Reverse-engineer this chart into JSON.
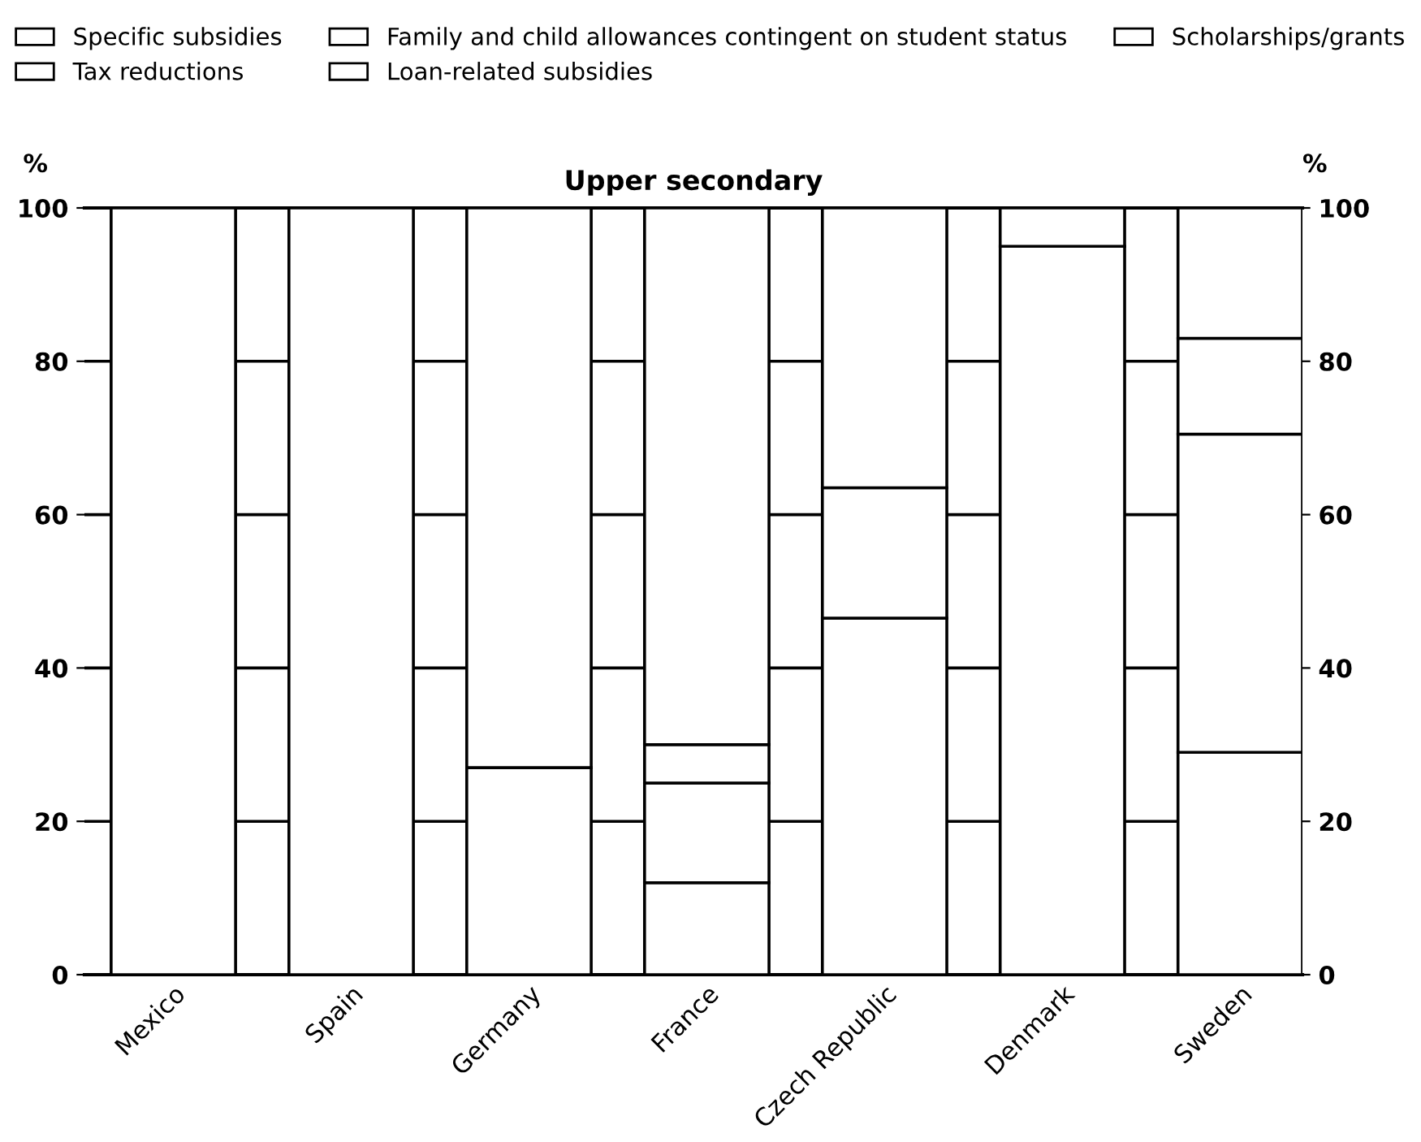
{
  "chart_data": {
    "type": "bar",
    "stacked": true,
    "title": "Upper secondary",
    "ylabel": "%",
    "y2label": "%",
    "categories": [
      "Mexico",
      "Spain",
      "Germany",
      "France",
      "Czech Republic",
      "Denmark",
      "Sweden"
    ],
    "series": [
      {
        "name": "Scholarships/grants",
        "color": "#ffffff",
        "values": [
          100,
          100,
          27,
          12,
          46.5,
          95,
          29
        ]
      },
      {
        "name": "Loan-related subsidies",
        "color": "#ffffff",
        "values": [
          null,
          null,
          null,
          13,
          null,
          null,
          41.5
        ]
      },
      {
        "name": "Family and child allowances contingent on student status",
        "color": "#ffffff",
        "values": [
          null,
          null,
          73,
          5,
          17,
          null,
          12.5
        ]
      },
      {
        "name": "Tax reductions",
        "color": "#ffffff",
        "values": [
          null,
          null,
          null,
          null,
          36.5,
          null,
          null
        ]
      },
      {
        "name": "Specific subsidies",
        "color": "#ffffff",
        "values": [
          null,
          null,
          null,
          70,
          null,
          5,
          17
        ]
      }
    ],
    "ylim": [
      0,
      100
    ],
    "yticks": [
      0,
      20,
      40,
      60,
      80,
      100
    ],
    "y2lim": [
      0,
      100
    ],
    "y2ticks": [
      0,
      20,
      40,
      60,
      80,
      100
    ],
    "grid": "y",
    "legend": "top"
  }
}
